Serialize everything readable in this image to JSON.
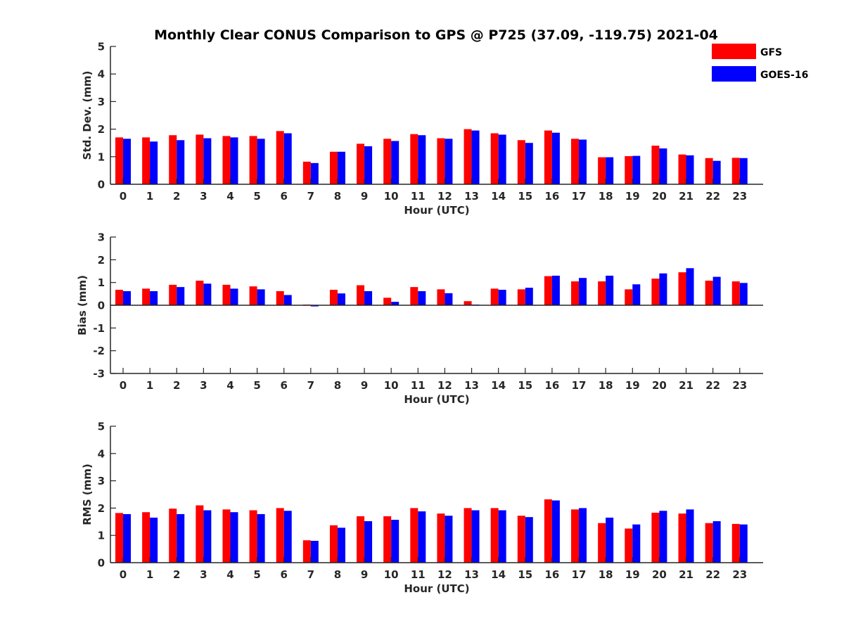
{
  "title": "Monthly Clear CONUS Comparison to GPS @ P725 (37.09, -119.75) 2021-04",
  "colors": {
    "gfs": "#ff0000",
    "goes": "#0000ff",
    "axis": "#262626"
  },
  "legend": {
    "location": "top-right",
    "entries": [
      "GFS",
      "GOES-16"
    ]
  },
  "chart_data": [
    {
      "type": "bar",
      "categories": [
        "0",
        "1",
        "2",
        "3",
        "4",
        "5",
        "6",
        "7",
        "8",
        "9",
        "10",
        "11",
        "12",
        "13",
        "14",
        "15",
        "16",
        "17",
        "18",
        "19",
        "20",
        "21",
        "22",
        "23"
      ],
      "series": [
        {
          "name": "GFS",
          "values": [
            1.7,
            1.7,
            1.78,
            1.8,
            1.75,
            1.75,
            1.93,
            0.82,
            1.18,
            1.47,
            1.65,
            1.82,
            1.67,
            2.0,
            1.85,
            1.6,
            1.95,
            1.65,
            0.98,
            1.02,
            1.4,
            1.08,
            0.95,
            0.96
          ]
        },
        {
          "name": "GOES-16",
          "values": [
            1.65,
            1.55,
            1.6,
            1.67,
            1.7,
            1.65,
            1.85,
            0.77,
            1.18,
            1.38,
            1.57,
            1.78,
            1.65,
            1.95,
            1.8,
            1.5,
            1.87,
            1.62,
            0.98,
            1.03,
            1.3,
            1.05,
            0.85,
            0.95
          ]
        }
      ],
      "xlabel": "Hour (UTC)",
      "ylabel": "Std. Dev. (mm)",
      "ylim": [
        0,
        5
      ],
      "yticks": [
        0,
        1,
        2,
        3,
        4,
        5
      ],
      "grid": false
    },
    {
      "type": "bar",
      "categories": [
        "0",
        "1",
        "2",
        "3",
        "4",
        "5",
        "6",
        "7",
        "8",
        "9",
        "10",
        "11",
        "12",
        "13",
        "14",
        "15",
        "16",
        "17",
        "18",
        "19",
        "20",
        "21",
        "22",
        "23"
      ],
      "series": [
        {
          "name": "GFS",
          "values": [
            0.68,
            0.73,
            0.9,
            1.08,
            0.9,
            0.83,
            0.62,
            0.03,
            0.68,
            0.88,
            0.33,
            0.8,
            0.7,
            0.18,
            0.73,
            0.7,
            1.28,
            1.05,
            1.05,
            0.7,
            1.17,
            1.45,
            1.08,
            1.05
          ]
        },
        {
          "name": "GOES-16",
          "values": [
            0.62,
            0.62,
            0.8,
            0.95,
            0.73,
            0.7,
            0.45,
            -0.05,
            0.52,
            0.62,
            0.15,
            0.62,
            0.53,
            0.03,
            0.68,
            0.77,
            1.3,
            1.2,
            1.3,
            0.92,
            1.4,
            1.63,
            1.25,
            0.98
          ]
        }
      ],
      "xlabel": "Hour (UTC)",
      "ylabel": "Bias (mm)",
      "ylim": [
        -3,
        3
      ],
      "yticks": [
        -3,
        -2,
        -1,
        0,
        1,
        2,
        3
      ],
      "grid": false
    },
    {
      "type": "bar",
      "categories": [
        "0",
        "1",
        "2",
        "3",
        "4",
        "5",
        "6",
        "7",
        "8",
        "9",
        "10",
        "11",
        "12",
        "13",
        "14",
        "15",
        "16",
        "17",
        "18",
        "19",
        "20",
        "21",
        "22",
        "23"
      ],
      "series": [
        {
          "name": "GFS",
          "values": [
            1.82,
            1.85,
            1.98,
            2.1,
            1.95,
            1.92,
            2.0,
            0.82,
            1.37,
            1.7,
            1.7,
            2.0,
            1.8,
            2.0,
            2.0,
            1.72,
            2.32,
            1.95,
            1.45,
            1.25,
            1.83,
            1.8,
            1.45,
            1.42
          ]
        },
        {
          "name": "GOES-16",
          "values": [
            1.78,
            1.65,
            1.78,
            1.92,
            1.85,
            1.78,
            1.9,
            0.8,
            1.28,
            1.52,
            1.57,
            1.88,
            1.72,
            1.92,
            1.92,
            1.67,
            2.28,
            2.0,
            1.65,
            1.4,
            1.9,
            1.95,
            1.52,
            1.4
          ]
        }
      ],
      "xlabel": "Hour (UTC)",
      "ylabel": "RMS (mm)",
      "ylim": [
        0,
        5
      ],
      "yticks": [
        0,
        1,
        2,
        3,
        4,
        5
      ],
      "grid": false
    }
  ]
}
